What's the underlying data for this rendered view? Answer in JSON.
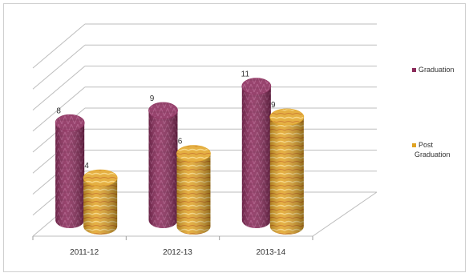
{
  "chart_data": {
    "type": "bar",
    "categories": [
      "2011-12",
      "2012-13",
      "2013-14"
    ],
    "series": [
      {
        "name": "Graduation",
        "values": [
          8,
          9,
          11
        ],
        "color": "#8a2b5a"
      },
      {
        "name": "Post Graduation",
        "values": [
          4,
          6,
          9
        ],
        "color": "#e0a322"
      }
    ],
    "title": "",
    "xlabel": "",
    "ylabel": "",
    "ylim": [
      0,
      13
    ],
    "grid": true,
    "legend_position": "right",
    "style": "3d-cylinder"
  }
}
